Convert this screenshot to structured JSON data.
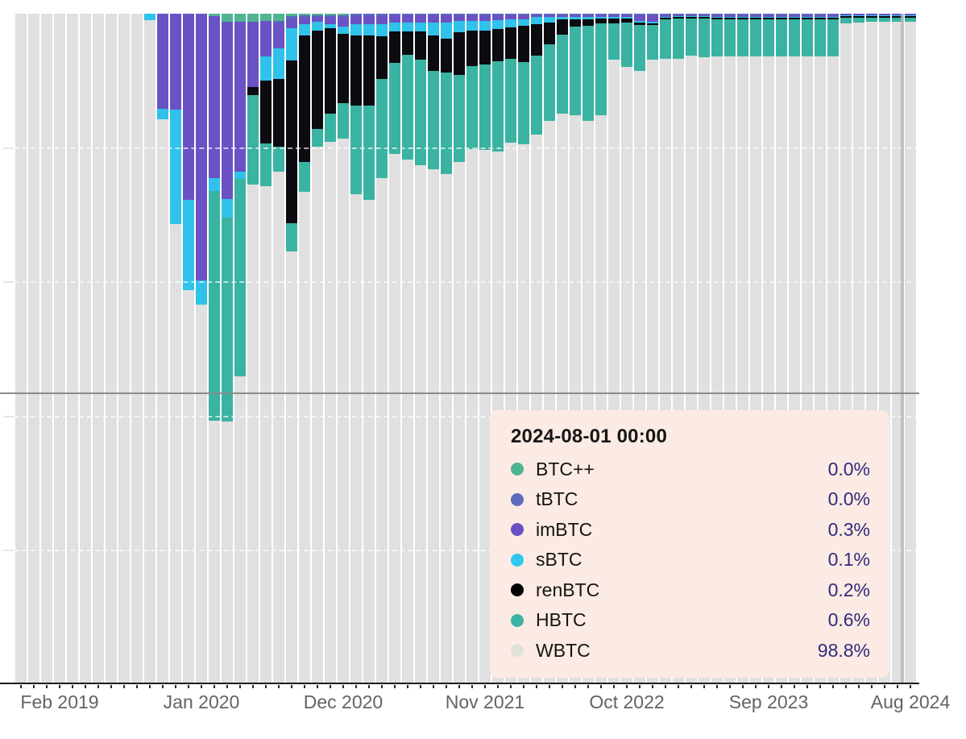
{
  "chart": {
    "colors": {
      "BTC++": "#4fb492",
      "tBTC": "#5a66bd",
      "imBTC": "#6a52c4",
      "sBTC": "#30c2ea",
      "renBTC": "#0b0b10",
      "HBTC": "#3ab3a2",
      "WBTC": "#e0e0e0"
    }
  },
  "chart_data": {
    "type": "bar",
    "stacked_percent": true,
    "y_axis_inverted": true,
    "stack_order_top_to_bottom": [
      "BTC++",
      "tBTC",
      "imBTC",
      "sBTC",
      "renBTC",
      "HBTC",
      "WBTC"
    ],
    "ylim": [
      0,
      100
    ],
    "gridlines_pct": [
      20,
      40,
      60,
      80
    ],
    "reference_line_pct": 56.7,
    "x_tick_labels": [
      "Feb 2019",
      "Jan 2020",
      "Dec 2020",
      "Nov 2021",
      "Oct 2022",
      "Sep 2023",
      "Aug 2024"
    ],
    "x_tick_label_indices": [
      3,
      14,
      25,
      36,
      47,
      58,
      69
    ],
    "x": [
      "2018-11",
      "2018-12",
      "2019-01",
      "2019-02",
      "2019-03",
      "2019-04",
      "2019-05",
      "2019-06",
      "2019-07",
      "2019-08",
      "2019-09",
      "2019-10",
      "2019-11",
      "2019-12",
      "2020-01",
      "2020-02",
      "2020-03",
      "2020-04",
      "2020-05",
      "2020-06",
      "2020-07",
      "2020-08",
      "2020-09",
      "2020-10",
      "2020-11",
      "2020-12",
      "2021-01",
      "2021-02",
      "2021-03",
      "2021-04",
      "2021-05",
      "2021-06",
      "2021-07",
      "2021-08",
      "2021-09",
      "2021-10",
      "2021-11",
      "2021-12",
      "2022-01",
      "2022-02",
      "2022-03",
      "2022-04",
      "2022-05",
      "2022-06",
      "2022-07",
      "2022-08",
      "2022-09",
      "2022-10",
      "2022-11",
      "2022-12",
      "2023-01",
      "2023-02",
      "2023-03",
      "2023-04",
      "2023-05",
      "2023-06",
      "2023-07",
      "2023-08",
      "2023-09",
      "2023-10",
      "2023-11",
      "2023-12",
      "2024-01",
      "2024-02",
      "2024-03",
      "2024-04",
      "2024-05",
      "2024-06",
      "2024-07",
      "2024-08"
    ],
    "series": [
      {
        "name": "BTC++",
        "values": [
          0,
          0,
          0,
          0,
          0,
          0,
          0,
          0,
          0,
          0,
          0,
          0,
          0,
          0,
          0,
          0.4,
          1.2,
          1.2,
          1.2,
          1.1,
          1.1,
          0.4,
          0.3,
          0.2,
          0.2,
          0.2,
          0,
          0,
          0,
          0,
          0,
          0,
          0,
          0,
          0,
          0,
          0,
          0,
          0,
          0,
          0,
          0,
          0,
          0,
          0,
          0,
          0,
          0,
          0,
          0,
          0,
          0,
          0,
          0,
          0,
          0,
          0,
          0,
          0,
          0,
          0,
          0,
          0,
          0,
          0,
          0,
          0,
          0,
          0,
          0
        ]
      },
      {
        "name": "tBTC",
        "values": [
          0,
          0,
          0,
          0,
          0,
          0,
          0,
          0,
          0,
          0,
          0,
          0,
          0,
          0,
          0,
          0,
          0,
          0,
          0,
          0,
          0.3,
          0.4,
          0.3,
          0.3,
          0.3,
          0.4,
          0.4,
          0.4,
          0.4,
          0.3,
          0.3,
          0.3,
          0.3,
          0.3,
          0.3,
          0.3,
          0.3,
          0.3,
          0.3,
          0.3,
          0.3,
          0.3,
          0.3,
          0.3,
          0.3,
          0.3,
          0.3,
          0.3,
          0.3,
          0.3,
          0.3,
          0.3,
          0.3,
          0.3,
          0.3,
          0.3,
          0.3,
          0.3,
          0.3,
          0.3,
          0.3,
          0.3,
          0.3,
          0.3,
          0,
          0,
          0,
          0,
          0,
          0
        ]
      },
      {
        "name": "imBTC",
        "values": [
          0,
          0,
          0,
          0,
          0,
          0,
          0,
          0,
          0,
          0,
          0,
          14.2,
          14.3,
          27.8,
          39.8,
          24.1,
          26.5,
          22.4,
          9.8,
          5.3,
          3.8,
          1.4,
          1.0,
          0.7,
          1.1,
          1.3,
          1.2,
          1.2,
          1.2,
          1.0,
          1.0,
          1.0,
          1.0,
          1.0,
          0.8,
          0.8,
          0.8,
          0.7,
          0.6,
          0.5,
          0.2,
          0.2,
          0.2,
          0.2,
          0.2,
          0.2,
          0.2,
          0.2,
          0.8,
          0.9,
          0.2,
          0.1,
          0.1,
          0.1,
          0.2,
          0.2,
          0.2,
          0.2,
          0.2,
          0.2,
          0.2,
          0.2,
          0.2,
          0.2,
          0.3,
          0.3,
          0.3,
          0.3,
          0.3,
          0.3
        ]
      },
      {
        "name": "sBTC",
        "values": [
          0,
          0,
          0,
          0,
          0,
          0,
          0,
          0,
          0,
          0,
          1.0,
          1.6,
          17.1,
          13.5,
          3.7,
          2.0,
          2.8,
          1.1,
          0,
          3.6,
          4.5,
          4.8,
          1.6,
          1.3,
          0.6,
          1.1,
          1.6,
          1.6,
          1.8,
          1.4,
          1.4,
          1.4,
          2.0,
          2.4,
          1.7,
          1.4,
          1.4,
          1.3,
          1.2,
          1.0,
          1.1,
          0.8,
          0.4,
          0.3,
          0.3,
          0.2,
          0.2,
          0.2,
          0.2,
          0.2,
          0.1,
          0.1,
          0.1,
          0.1,
          0.1,
          0.1,
          0.1,
          0.1,
          0.1,
          0.1,
          0.1,
          0.1,
          0.1,
          0.1,
          0.1,
          0.1,
          0.1,
          0.1,
          0.1,
          0.1
        ]
      },
      {
        "name": "renBTC",
        "values": [
          0,
          0,
          0,
          0,
          0,
          0,
          0,
          0,
          0,
          0,
          0,
          0,
          0,
          0,
          0,
          0,
          0,
          0,
          1.2,
          9.4,
          10.2,
          24.3,
          18.9,
          14.7,
          12.7,
          10.4,
          10.5,
          10.5,
          6.4,
          4.6,
          3.4,
          4.2,
          5.2,
          5.1,
          6.4,
          5.3,
          5.1,
          4.8,
          4.7,
          5.4,
          4.6,
          3.3,
          2.2,
          1.1,
          1.0,
          0.8,
          0.7,
          0.6,
          0.4,
          0.3,
          0.3,
          0.2,
          0.2,
          0.2,
          0.3,
          0.3,
          0.3,
          0.3,
          0.3,
          0.3,
          0.3,
          0.3,
          0.3,
          0.3,
          0.2,
          0.2,
          0.2,
          0.2,
          0.2,
          0.2
        ]
      },
      {
        "name": "HBTC",
        "values": [
          0,
          0,
          0,
          0,
          0,
          0,
          0,
          0,
          0,
          0,
          0,
          0,
          0,
          0,
          0,
          34.3,
          30.4,
          29.5,
          13.3,
          6.3,
          3.7,
          4.2,
          4.5,
          2.7,
          4.2,
          5.3,
          13.3,
          14.1,
          14.7,
          13.7,
          15.7,
          15.7,
          14.7,
          15.1,
          12.9,
          12.4,
          12.7,
          13.5,
          12.5,
          12.3,
          11.8,
          11.4,
          11.8,
          13.3,
          14.2,
          13.7,
          5.5,
          6.6,
          6.9,
          5.2,
          5.9,
          6.0,
          5.5,
          5.8,
          5.5,
          5.5,
          5.5,
          5.5,
          5.5,
          5.5,
          5.5,
          5.5,
          5.5,
          5.5,
          0.8,
          0.7,
          0.6,
          0.6,
          0.6,
          0.6
        ]
      },
      {
        "name": "WBTC",
        "values": [
          100,
          100,
          100,
          100,
          100,
          100,
          100,
          100,
          100,
          100,
          99.0,
          84.2,
          68.6,
          58.7,
          56.5,
          39.2,
          39.1,
          45.8,
          74.5,
          74.3,
          76.4,
          64.5,
          73.4,
          80.1,
          80.9,
          81.3,
          73.0,
          72.2,
          75.5,
          79.0,
          78.2,
          77.4,
          76.8,
          76.1,
          77.9,
          79.8,
          79.7,
          79.4,
          80.7,
          80.5,
          82.0,
          84.0,
          85.1,
          84.8,
          84.0,
          84.8,
          93.1,
          92.1,
          91.4,
          93.1,
          93.2,
          93.3,
          93.8,
          93.5,
          93.6,
          93.6,
          93.6,
          93.6,
          93.6,
          93.6,
          93.6,
          93.6,
          93.6,
          93.6,
          98.6,
          98.7,
          98.8,
          98.8,
          98.8,
          98.8
        ]
      }
    ]
  },
  "tooltip": {
    "title": "2024-08-01 00:00",
    "rows": [
      {
        "label": "BTC++",
        "value": "0.0%",
        "color": "#4fb492"
      },
      {
        "label": "tBTC",
        "value": "0.0%",
        "color": "#5f6cbe"
      },
      {
        "label": "imBTC",
        "value": "0.3%",
        "color": "#6a4ec4"
      },
      {
        "label": "sBTC",
        "value": "0.1%",
        "color": "#2cc8ee"
      },
      {
        "label": "renBTC",
        "value": "0.2%",
        "color": "#000000"
      },
      {
        "label": "HBTC",
        "value": "0.6%",
        "color": "#3ab3a2"
      },
      {
        "label": "WBTC",
        "value": "98.8%",
        "color": "#dfe1da"
      }
    ]
  }
}
